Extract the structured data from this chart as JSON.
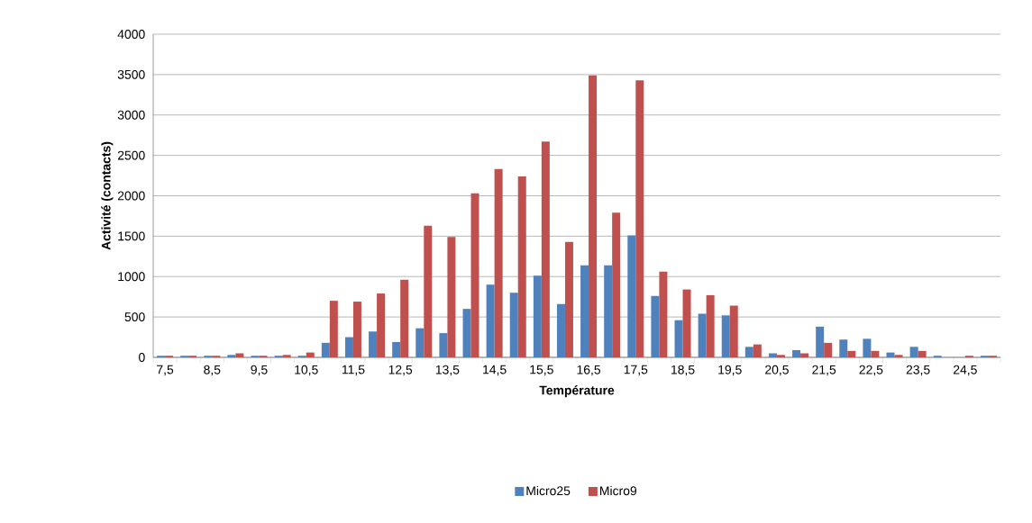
{
  "chart_data": {
    "type": "bar",
    "xlabel": "Température",
    "ylabel": "Activité (contacts)",
    "categories": [
      "7,5",
      null,
      "8,5",
      null,
      "9,5",
      null,
      "10,5",
      null,
      "11,5",
      null,
      "12,5",
      null,
      "13,5",
      null,
      "14,5",
      null,
      "15,5",
      null,
      "16,5",
      null,
      "17,5",
      null,
      "18,5",
      null,
      "19,5",
      null,
      "20,5",
      null,
      "21,5",
      null,
      "22,5",
      null,
      "23,5",
      null,
      "24,5",
      null
    ],
    "series": [
      {
        "name": "Micro25",
        "color": "#4f81bd",
        "values": [
          20,
          20,
          20,
          30,
          20,
          20,
          20,
          180,
          250,
          320,
          190,
          360,
          300,
          600,
          900,
          800,
          1010,
          660,
          1140,
          1140,
          1510,
          760,
          460,
          540,
          520,
          130,
          50,
          90,
          380,
          220,
          230,
          60,
          130,
          20,
          0,
          20
        ]
      },
      {
        "name": "Micro9",
        "color": "#c0504d",
        "values": [
          20,
          20,
          20,
          50,
          20,
          30,
          60,
          700,
          690,
          790,
          960,
          1630,
          1490,
          2030,
          2330,
          2240,
          2670,
          1430,
          3490,
          1790,
          3430,
          1060,
          840,
          770,
          640,
          160,
          30,
          50,
          180,
          80,
          80,
          30,
          80,
          0,
          20,
          20
        ]
      }
    ],
    "ylim": [
      0,
      4000
    ],
    "yticks": [
      0,
      500,
      1000,
      1500,
      2000,
      2500,
      3000,
      3500,
      4000
    ],
    "grid": "y",
    "legend": "bottom"
  }
}
